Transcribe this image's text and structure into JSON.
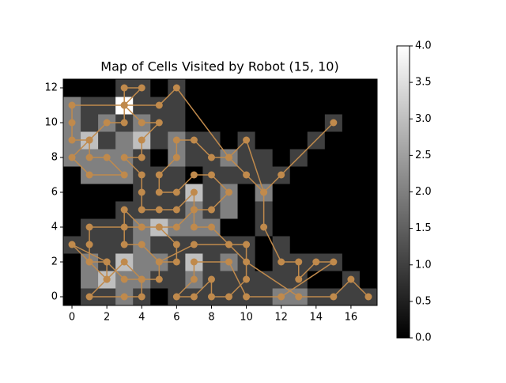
{
  "chart_data": {
    "type": "heatmap",
    "title": "Map of Cells Visited by Robot (15, 10)",
    "cmap": "gray",
    "xlim": [
      -0.5,
      17.5
    ],
    "ylim": [
      -0.5,
      12.5
    ],
    "xticks": [
      0,
      2,
      4,
      6,
      8,
      10,
      12,
      14,
      16
    ],
    "yticks": [
      0,
      2,
      4,
      6,
      8,
      10,
      12
    ],
    "z": [
      [
        0,
        1,
        1,
        2,
        1,
        0,
        1,
        1,
        1,
        1,
        1,
        1,
        2,
        2,
        1,
        1,
        1,
        1
      ],
      [
        0,
        2,
        3,
        2,
        2,
        1,
        1,
        2,
        1,
        1,
        1,
        1,
        1,
        1,
        0,
        0,
        1,
        0
      ],
      [
        0,
        2,
        1,
        3,
        2,
        2,
        1,
        3,
        1,
        2,
        1,
        0,
        1,
        1,
        1,
        1,
        0,
        0
      ],
      [
        1,
        1,
        1,
        1,
        2,
        1,
        1,
        1,
        1,
        1,
        1,
        0,
        1,
        0,
        0,
        0,
        0,
        0
      ],
      [
        0,
        1,
        1,
        1,
        2,
        3,
        2,
        2,
        2,
        0,
        0,
        1,
        0,
        0,
        0,
        0,
        0,
        0
      ],
      [
        0,
        0,
        0,
        1,
        1,
        1,
        1,
        2,
        1,
        2,
        0,
        1,
        0,
        0,
        0,
        0,
        0,
        0
      ],
      [
        0,
        0,
        0,
        0,
        1,
        1,
        1,
        3,
        1,
        2,
        0,
        2,
        0,
        0,
        0,
        0,
        0,
        0
      ],
      [
        0,
        2,
        2,
        2,
        1,
        1,
        1,
        0,
        1,
        1,
        1,
        1,
        1,
        0,
        0,
        0,
        0,
        0
      ],
      [
        2,
        2,
        2,
        2,
        1,
        0,
        2,
        1,
        1,
        2,
        1,
        1,
        0,
        1,
        0,
        0,
        0,
        0
      ],
      [
        2,
        3,
        1,
        2,
        3,
        1,
        2,
        1,
        1,
        0,
        1,
        0,
        0,
        0,
        1,
        0,
        0,
        0
      ],
      [
        2,
        1,
        2,
        1,
        2,
        1,
        1,
        0,
        0,
        0,
        0,
        0,
        0,
        0,
        0,
        1,
        0,
        0
      ],
      [
        2,
        1,
        1,
        4,
        1,
        1,
        1,
        0,
        0,
        0,
        0,
        0,
        0,
        0,
        0,
        0,
        0,
        0
      ],
      [
        0,
        0,
        0,
        1,
        1,
        0,
        1,
        0,
        0,
        0,
        0,
        0,
        0,
        0,
        0,
        0,
        0,
        0
      ]
    ],
    "colorbar": {
      "lim": [
        0,
        4
      ],
      "ticks": [
        {
          "value": 0,
          "label": "0.0"
        },
        {
          "value": 0.5,
          "label": "0.5"
        },
        {
          "value": 1,
          "label": "1.0"
        },
        {
          "value": 1.5,
          "label": "1.5"
        },
        {
          "value": 2,
          "label": "2.0"
        },
        {
          "value": 2.5,
          "label": "2.5"
        },
        {
          "value": 3,
          "label": "3.0"
        },
        {
          "value": 3.5,
          "label": "3.5"
        },
        {
          "value": 4,
          "label": "4.0"
        }
      ]
    },
    "path": {
      "color": "#c08a4c",
      "x": [
        15,
        12,
        11,
        11,
        12,
        13,
        13,
        14,
        15,
        12,
        10,
        9,
        7,
        7,
        6,
        7,
        8,
        8,
        9,
        10,
        10,
        9,
        8,
        7,
        7,
        8,
        9,
        8,
        7,
        6,
        5,
        5,
        6,
        6,
        7,
        8,
        9,
        10,
        11,
        10,
        9,
        6,
        5,
        3,
        0,
        0,
        0,
        1,
        0,
        1,
        3,
        2,
        1,
        1,
        2,
        3,
        3,
        3,
        4,
        3,
        4,
        5,
        4,
        4,
        3,
        4,
        4,
        4,
        5,
        6,
        7,
        7,
        6,
        5,
        4,
        3,
        3,
        4,
        5,
        6,
        6,
        5,
        4,
        3,
        1,
        1,
        1,
        2,
        2,
        1,
        3,
        4,
        4,
        3,
        2,
        0,
        1,
        2,
        3,
        4,
        5,
        5,
        7,
        9,
        10,
        13,
        15,
        16,
        17
      ],
      "y": [
        10,
        7,
        6,
        4,
        2,
        2,
        1,
        2,
        2,
        0,
        0,
        2,
        2,
        1,
        0,
        0,
        1,
        0,
        0,
        1,
        3,
        3,
        4,
        4,
        5,
        5,
        6,
        7,
        7,
        6,
        6,
        7,
        8,
        9,
        9,
        8,
        8,
        9,
        6,
        7,
        8,
        12,
        11,
        11,
        11,
        10,
        9,
        9,
        8,
        7,
        7,
        8,
        8,
        9,
        10,
        10,
        11,
        12,
        12,
        11,
        10,
        10,
        9,
        8,
        8,
        7,
        6,
        5,
        5,
        5,
        6,
        5,
        4,
        4,
        4,
        5,
        3,
        3,
        2,
        2,
        3,
        4,
        4,
        4,
        4,
        3,
        2,
        2,
        1,
        0,
        0,
        0,
        1,
        1,
        2,
        3,
        2,
        1,
        2,
        1,
        1,
        2,
        3,
        3,
        2,
        0,
        0,
        1,
        0
      ]
    }
  }
}
